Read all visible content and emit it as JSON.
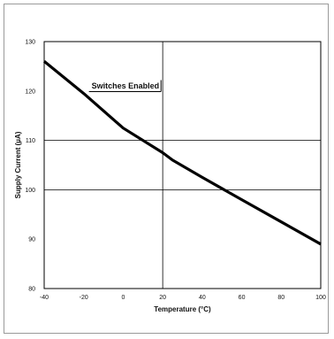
{
  "chart_data": {
    "type": "line",
    "title": "",
    "xlabel": "Temperature (°C)",
    "ylabel": "Supply Current (µA)",
    "xlim": [
      -40,
      100
    ],
    "ylim": [
      80,
      130
    ],
    "x_ticks": [
      -40,
      -20,
      0,
      20,
      40,
      60,
      80,
      100
    ],
    "y_ticks": [
      80,
      90,
      100,
      110,
      120,
      130
    ],
    "x_tick_labels": [
      "-40",
      "-20",
      "0",
      "20",
      "40",
      "60",
      "80",
      "100"
    ],
    "y_tick_labels": [
      "80",
      "90",
      "100",
      "110",
      "120",
      "130"
    ],
    "grid": "major at x=20 and y=100,110",
    "series": [
      {
        "color": "#000000",
        "x": [
          -40,
          -20,
          0,
          20,
          25,
          40,
          60,
          80,
          100
        ],
        "y": [
          126,
          119.5,
          112.5,
          107.5,
          106,
          102.5,
          98,
          93.5,
          89
        ]
      }
    ],
    "annotations": [
      {
        "text": "Switches Enabled",
        "x": -16,
        "y": 120.5
      }
    ]
  }
}
